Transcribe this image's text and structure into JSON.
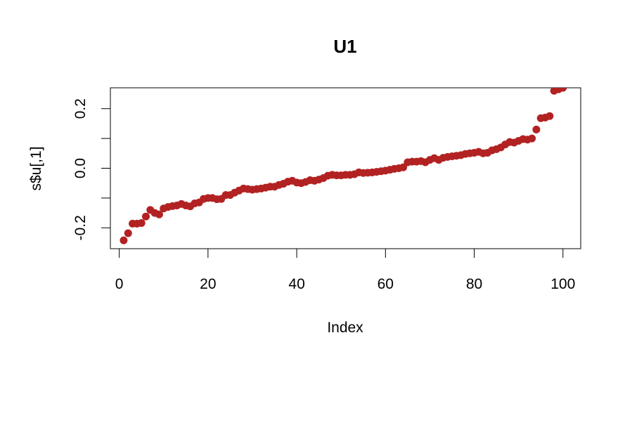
{
  "chart_data": {
    "type": "scatter",
    "title": "U1",
    "xlabel": "Index",
    "ylabel": "s$u[,1]",
    "xlim": [
      -2,
      104
    ],
    "ylim": [
      -0.27,
      0.27
    ],
    "xticks": [
      0,
      20,
      40,
      60,
      80,
      100
    ],
    "xtick_labels": [
      "0",
      "20",
      "40",
      "60",
      "80",
      "100"
    ],
    "yticks": [
      -0.2,
      0.0,
      0.2
    ],
    "ytick_labels": [
      "-0.2",
      "0.0",
      "0.2"
    ],
    "yticks_minor": [
      -0.1,
      0.1
    ],
    "grid": false,
    "legend": "none",
    "point_color": "#B22222",
    "series": [
      {
        "x": [
          1,
          2,
          3,
          4,
          5,
          6,
          7,
          8,
          9,
          10,
          11,
          12,
          13,
          14,
          15,
          16,
          17,
          18,
          19,
          20,
          21,
          22,
          23,
          24,
          25,
          26,
          27,
          28,
          29,
          30,
          31,
          32,
          33,
          34,
          35,
          36,
          37,
          38,
          39,
          40,
          41,
          42,
          43,
          44,
          45,
          46,
          47,
          48,
          49,
          50,
          51,
          52,
          53,
          54,
          55,
          56,
          57,
          58,
          59,
          60,
          61,
          62,
          63,
          64,
          65,
          66,
          67,
          68,
          69,
          70,
          71,
          72,
          73,
          74,
          75,
          76,
          77,
          78,
          79,
          80,
          81,
          82,
          83,
          84,
          85,
          86,
          87,
          88,
          89,
          90,
          91,
          92,
          93,
          94,
          95,
          96,
          97,
          98,
          99,
          100
        ],
        "values": [
          -0.242,
          -0.218,
          -0.186,
          -0.186,
          -0.184,
          -0.162,
          -0.14,
          -0.15,
          -0.155,
          -0.135,
          -0.13,
          -0.127,
          -0.125,
          -0.12,
          -0.125,
          -0.128,
          -0.118,
          -0.115,
          -0.103,
          -0.1,
          -0.1,
          -0.104,
          -0.103,
          -0.09,
          -0.09,
          -0.082,
          -0.075,
          -0.068,
          -0.07,
          -0.072,
          -0.07,
          -0.068,
          -0.065,
          -0.062,
          -0.062,
          -0.056,
          -0.052,
          -0.045,
          -0.042,
          -0.048,
          -0.05,
          -0.046,
          -0.04,
          -0.042,
          -0.038,
          -0.033,
          -0.025,
          -0.022,
          -0.024,
          -0.024,
          -0.022,
          -0.022,
          -0.02,
          -0.014,
          -0.016,
          -0.015,
          -0.014,
          -0.012,
          -0.01,
          -0.008,
          -0.005,
          -0.002,
          0.0,
          0.003,
          0.02,
          0.022,
          0.022,
          0.024,
          0.02,
          0.028,
          0.034,
          0.028,
          0.035,
          0.038,
          0.04,
          0.042,
          0.044,
          0.048,
          0.05,
          0.052,
          0.055,
          0.05,
          0.052,
          0.06,
          0.064,
          0.07,
          0.08,
          0.088,
          0.086,
          0.092,
          0.098,
          0.096,
          0.1,
          0.13,
          0.168,
          0.17,
          0.175,
          0.26,
          0.265,
          0.27
        ]
      }
    ]
  }
}
